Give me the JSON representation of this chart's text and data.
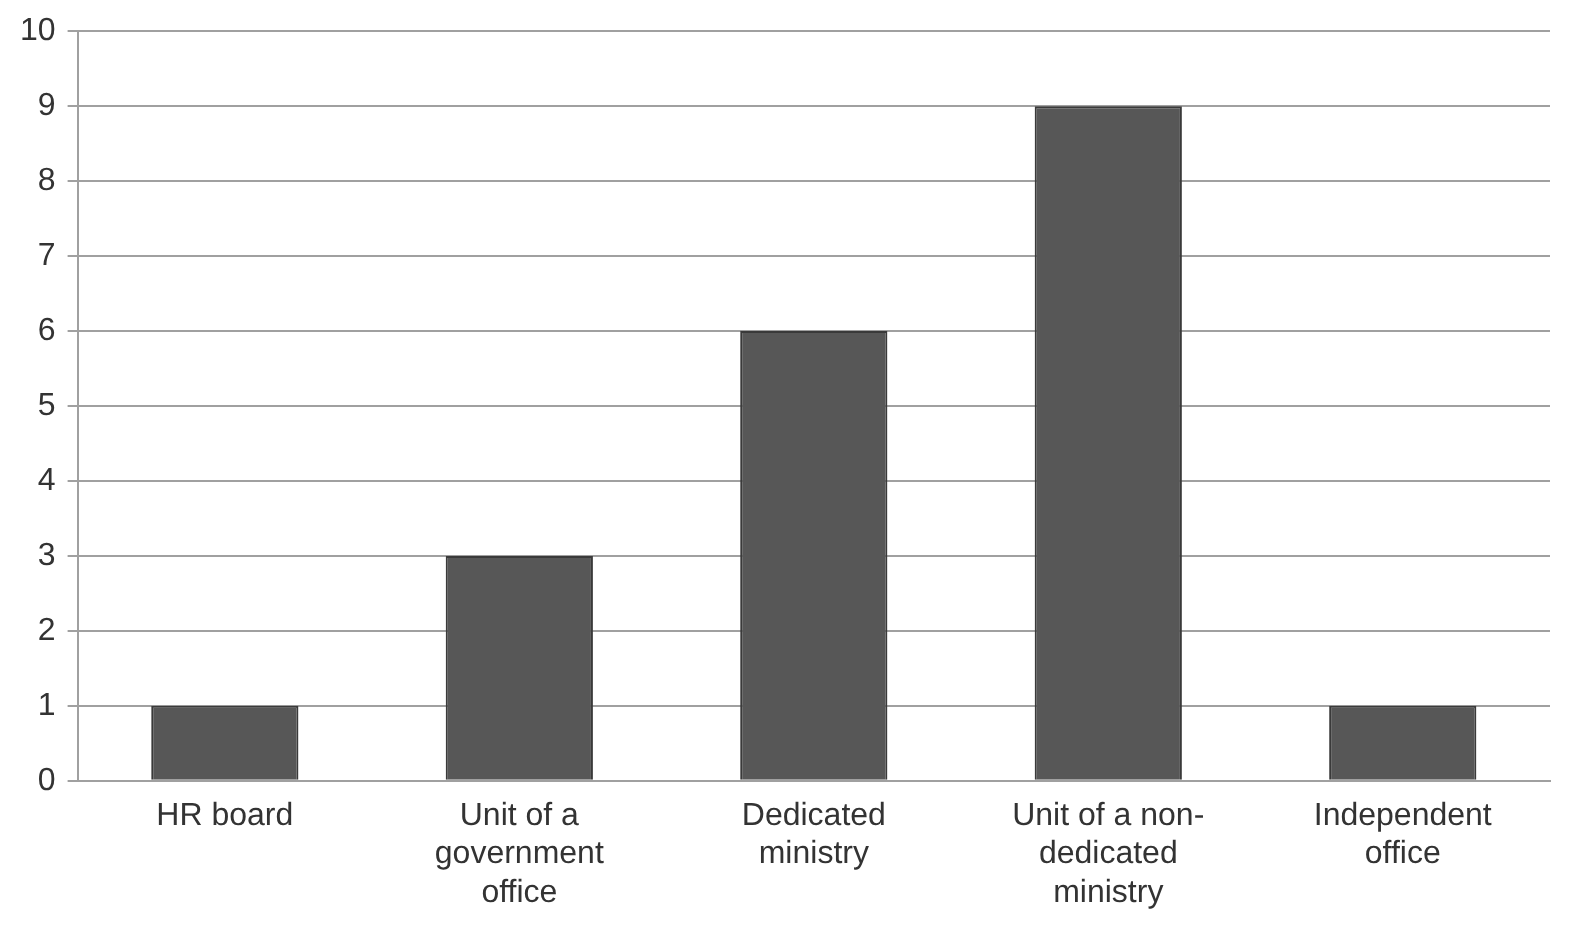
{
  "chart_data": {
    "type": "bar",
    "categories": [
      "HR board",
      "Unit of a government office",
      "Dedicated ministry",
      "Unit of a non-dedicated ministry",
      "Independent office"
    ],
    "values": [
      1,
      3,
      6,
      9,
      1
    ],
    "color": "#575757",
    "ylim": [
      0,
      10
    ],
    "yticks": [
      0,
      1,
      2,
      3,
      4,
      5,
      6,
      7,
      8,
      9,
      10
    ],
    "grid": "y",
    "legend": false
  }
}
